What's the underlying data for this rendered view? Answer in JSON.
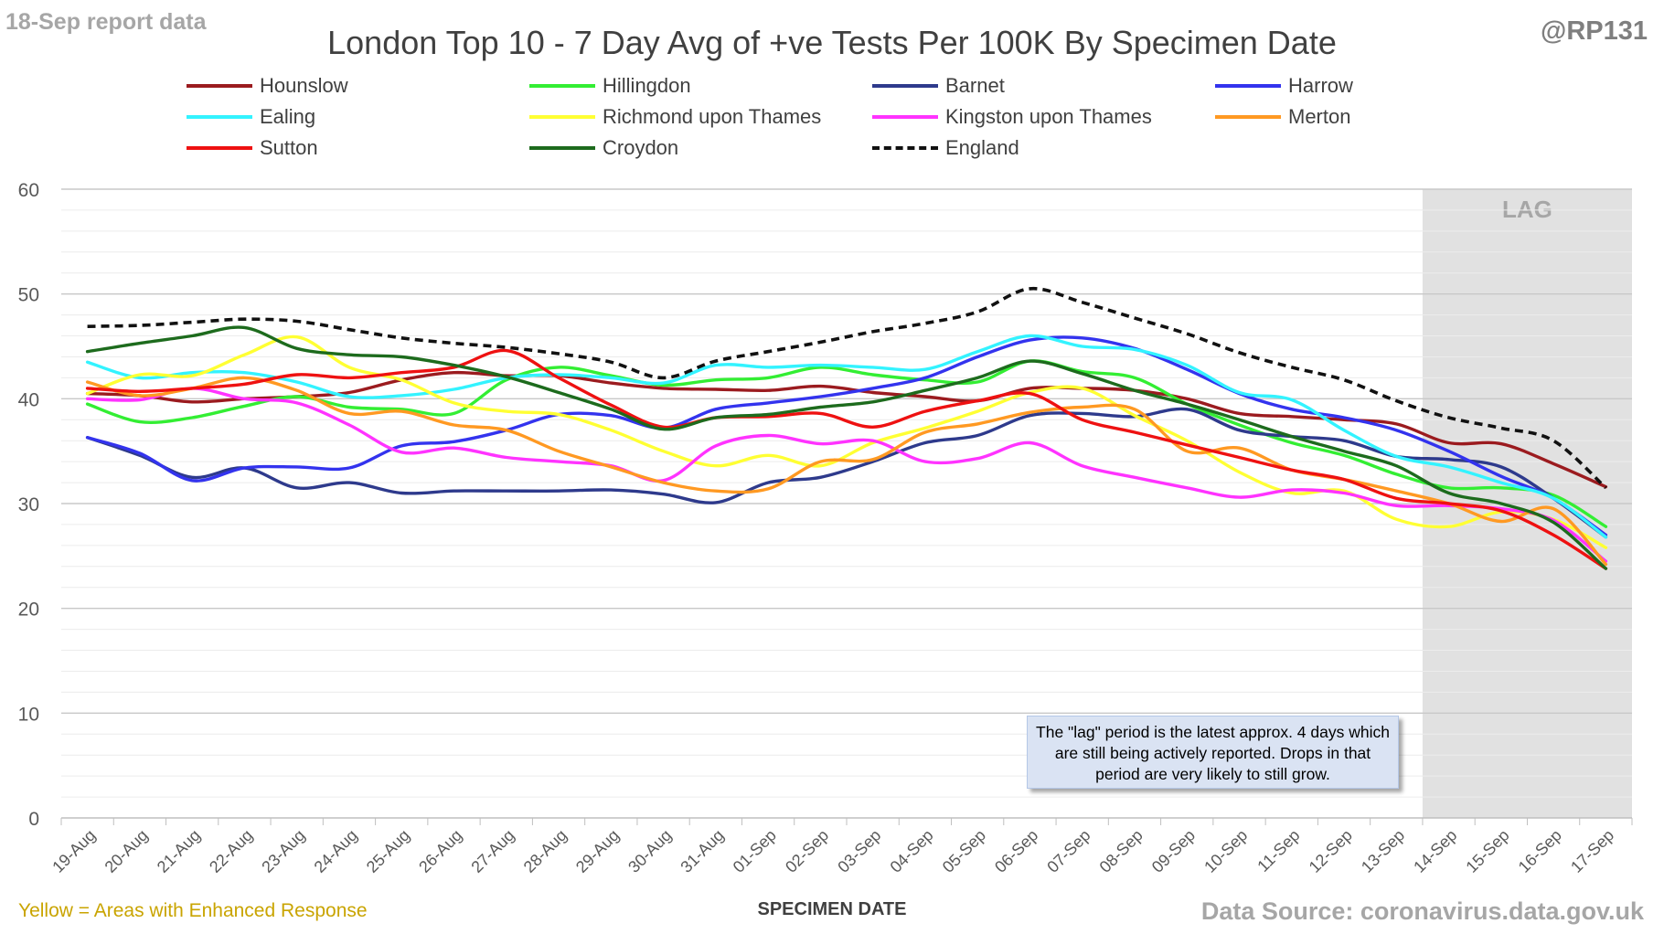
{
  "header": {
    "report_label": "18-Sep report data",
    "handle": "@RP131"
  },
  "footer": {
    "enhanced_note": "Yellow = Areas with Enhanced Response",
    "source": "Data Source: coronavirus.data.gov.uk"
  },
  "annotation": {
    "lag_label": "LAG",
    "text": "The \"lag\" period is the latest approx. 4 days which are still being actively reported. Drops in that period are very likely to still grow."
  },
  "chart_data": {
    "type": "line",
    "title": "London Top 10 - 7 Day Avg of +ve Tests Per 100K By Specimen Date",
    "xlabel": "SPECIMEN DATE",
    "ylabel": "",
    "ylim": [
      0,
      60
    ],
    "yticks": [
      0,
      10,
      20,
      30,
      40,
      50,
      60
    ],
    "grid": true,
    "legend_position": "top",
    "lag_period": [
      "14-Sep",
      "17-Sep"
    ],
    "x": [
      "19-Aug",
      "20-Aug",
      "21-Aug",
      "22-Aug",
      "23-Aug",
      "24-Aug",
      "25-Aug",
      "26-Aug",
      "27-Aug",
      "28-Aug",
      "29-Aug",
      "30-Aug",
      "31-Aug",
      "01-Sep",
      "02-Sep",
      "03-Sep",
      "04-Sep",
      "05-Sep",
      "06-Sep",
      "07-Sep",
      "08-Sep",
      "09-Sep",
      "10-Sep",
      "11-Sep",
      "12-Sep",
      "13-Sep",
      "14-Sep",
      "15-Sep",
      "16-Sep",
      "17-Sep"
    ],
    "series": [
      {
        "name": "Hounslow",
        "color": "#9b1b1f",
        "dash": false,
        "values": [
          40.5,
          40.3,
          39.7,
          40.0,
          40.2,
          40.6,
          41.8,
          42.5,
          42.2,
          42.2,
          41.5,
          41.0,
          40.9,
          40.8,
          41.2,
          40.6,
          40.2,
          39.8,
          41.0,
          41.0,
          40.8,
          40.0,
          38.6,
          38.3,
          38.0,
          37.6,
          35.8,
          35.7,
          33.8,
          31.6
        ]
      },
      {
        "name": "Hillingdon",
        "color": "#33ee33",
        "dash": false,
        "values": [
          39.5,
          37.8,
          38.2,
          39.3,
          40.2,
          39.2,
          39.0,
          38.6,
          41.8,
          43.0,
          42.2,
          41.3,
          41.8,
          42.0,
          43.0,
          42.3,
          41.8,
          41.6,
          43.6,
          42.6,
          42.0,
          39.5,
          37.5,
          35.8,
          34.6,
          32.8,
          31.5,
          31.5,
          30.8,
          27.8
        ]
      },
      {
        "name": "Barnet",
        "color": "#2e3a8c",
        "dash": false,
        "values": [
          36.3,
          34.6,
          32.5,
          33.4,
          31.5,
          32.0,
          31.0,
          31.2,
          31.2,
          31.2,
          31.3,
          30.9,
          30.1,
          32.0,
          32.5,
          34.0,
          35.8,
          36.5,
          38.4,
          38.6,
          38.3,
          39.0,
          37.0,
          36.4,
          36.0,
          34.5,
          34.2,
          33.5,
          30.5,
          26.8
        ]
      },
      {
        "name": "Harrow",
        "color": "#3333ee",
        "dash": false,
        "values": [
          36.3,
          34.8,
          32.2,
          33.4,
          33.5,
          33.4,
          35.5,
          35.9,
          37.0,
          38.5,
          38.4,
          37.2,
          39.0,
          39.6,
          40.2,
          41.0,
          42.0,
          44.0,
          45.6,
          45.8,
          44.8,
          42.8,
          40.5,
          39.0,
          38.2,
          37.0,
          35.0,
          32.6,
          30.5,
          27.0
        ]
      },
      {
        "name": "Ealing",
        "color": "#33f3ff",
        "dash": false,
        "values": [
          43.5,
          42.0,
          42.5,
          42.5,
          41.6,
          40.2,
          40.3,
          40.9,
          42.0,
          42.3,
          42.0,
          41.5,
          43.2,
          43.0,
          43.2,
          43.0,
          42.8,
          44.5,
          46.0,
          45.0,
          44.7,
          43.2,
          40.6,
          39.9,
          37.0,
          34.5,
          33.5,
          32.0,
          30.5,
          26.8
        ]
      },
      {
        "name": "Richmond upon Thames",
        "color": "#ffff33",
        "dash": false,
        "values": [
          40.5,
          42.3,
          42.2,
          44.2,
          45.9,
          43.0,
          41.8,
          39.6,
          38.8,
          38.5,
          37.0,
          35.0,
          33.6,
          34.6,
          33.6,
          35.8,
          37.2,
          38.8,
          40.6,
          41.0,
          38.4,
          36.0,
          33.0,
          31.0,
          31.2,
          28.5,
          27.8,
          29.2,
          28.5,
          25.8
        ]
      },
      {
        "name": "Kingston upon Thames",
        "color": "#ff33ff",
        "dash": false,
        "values": [
          40.0,
          39.9,
          41.0,
          40.0,
          39.6,
          37.5,
          34.9,
          35.3,
          34.4,
          34.0,
          33.6,
          32.2,
          35.5,
          36.5,
          35.7,
          36.0,
          34.0,
          34.3,
          35.8,
          33.6,
          32.5,
          31.5,
          30.6,
          31.3,
          31.0,
          29.8,
          29.8,
          29.5,
          28.4,
          24.5
        ]
      },
      {
        "name": "Merton",
        "color": "#ff9922",
        "dash": false,
        "values": [
          41.6,
          40.3,
          41.0,
          42.0,
          40.8,
          38.6,
          38.8,
          37.5,
          37.0,
          35.0,
          33.5,
          32.0,
          31.2,
          31.4,
          34.0,
          34.2,
          36.8,
          37.6,
          38.7,
          39.2,
          39.0,
          35.0,
          35.3,
          33.2,
          32.3,
          31.2,
          30.0,
          28.3,
          29.5,
          24.2
        ]
      },
      {
        "name": "Sutton",
        "color": "#ee1111",
        "dash": false,
        "values": [
          41.0,
          40.7,
          41.0,
          41.4,
          42.3,
          42.0,
          42.5,
          43.0,
          44.6,
          42.0,
          39.4,
          37.3,
          38.2,
          38.3,
          38.6,
          37.3,
          38.8,
          39.8,
          40.5,
          38.0,
          36.8,
          35.6,
          34.4,
          33.2,
          32.3,
          30.5,
          30.0,
          29.3,
          27.0,
          23.8
        ]
      },
      {
        "name": "Croydon",
        "color": "#1d6b1d",
        "dash": false,
        "values": [
          44.5,
          45.3,
          46.0,
          46.8,
          44.8,
          44.2,
          44.0,
          43.2,
          42.1,
          40.6,
          39.0,
          37.1,
          38.2,
          38.5,
          39.2,
          39.7,
          40.8,
          42.0,
          43.6,
          42.4,
          40.8,
          39.5,
          38.0,
          36.4,
          35.0,
          33.6,
          31.0,
          30.0,
          28.2,
          23.8
        ]
      },
      {
        "name": "England",
        "color": "#111111",
        "dash": true,
        "values": [
          46.9,
          47.0,
          47.3,
          47.6,
          47.4,
          46.6,
          45.8,
          45.3,
          44.9,
          44.3,
          43.5,
          42.0,
          43.6,
          44.5,
          45.4,
          46.4,
          47.2,
          48.3,
          50.5,
          49.2,
          47.7,
          46.2,
          44.4,
          43.0,
          41.8,
          39.8,
          38.2,
          37.2,
          36.0,
          31.5
        ]
      }
    ]
  }
}
